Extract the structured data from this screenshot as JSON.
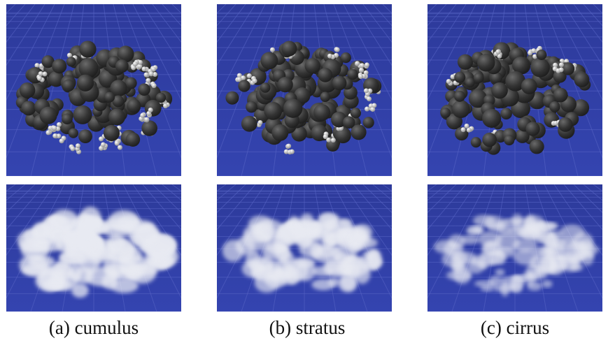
{
  "panels": [
    {
      "caption": "(a) cumulus"
    },
    {
      "caption": "(b) stratus"
    },
    {
      "caption": "(c) cirrus"
    }
  ]
}
